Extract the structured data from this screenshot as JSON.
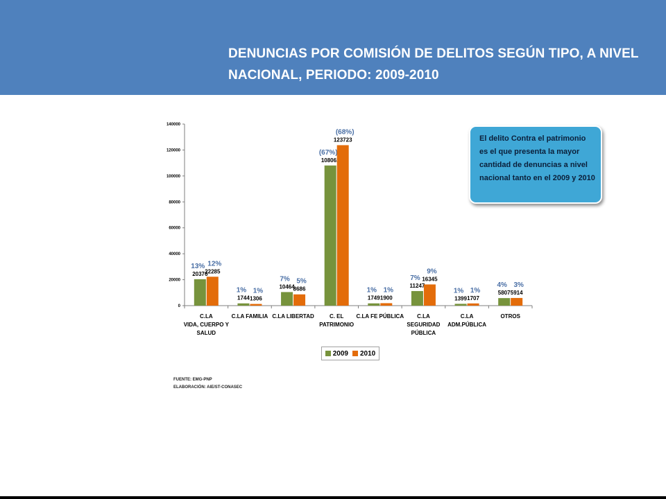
{
  "slide": {
    "title_line1": "DENUNCIAS POR COMISIÓN DE DELITOS SEGÚN TIPO, A NIVEL",
    "title_line2": "NACIONAL, PERIODO: 2009-2010",
    "callout_text": "El delito Contra el patrimonio es el que presenta la mayor cantidad de denuncias a nivel nacional tanto en el  2009 y 2010",
    "source": "FUENTE: EMG-PNP",
    "elaboration": "ELABORACIÓN: AIE/ST-CONASEC",
    "colors": {
      "header": "#4f81bd",
      "callout": "#3fa7d6"
    }
  },
  "chart_data": {
    "type": "bar",
    "title": "",
    "xlabel": "",
    "ylabel": "",
    "ylim": [
      0,
      140000
    ],
    "yticks": [
      "0",
      "20000",
      "40000",
      "60000",
      "80000",
      "100000",
      "120000",
      "140000"
    ],
    "categories": [
      [
        "C.LA",
        "VIDA, CUERPO Y",
        "SALUD"
      ],
      [
        "C.LA FAMILIA"
      ],
      [
        "C.LA LIBERTAD"
      ],
      [
        "C. EL",
        "PATRIMONIO"
      ],
      [
        "C.LA FE PÚBLICA"
      ],
      [
        "C.LA",
        "SEGURIDAD",
        "PÚBLICA"
      ],
      [
        "C.LA",
        "ADM.PÚBLICA"
      ],
      [
        "OTROS"
      ]
    ],
    "series": [
      {
        "name": "2009",
        "color": "#77933c",
        "values": [
          20376,
          1744,
          10464,
          108062,
          1749,
          11247,
          1399,
          5807
        ],
        "percent_labels": [
          "13%",
          "1%",
          "7%",
          "(67%)",
          "1%",
          "7%",
          "1%",
          "4%"
        ]
      },
      {
        "name": "2010",
        "color": "#e36c0a",
        "values": [
          22285,
          1306,
          8686,
          123723,
          1900,
          16345,
          1707,
          5914
        ],
        "percent_labels": [
          "12%",
          "1%",
          "5%",
          "(68%)",
          "1%",
          "9%",
          "1%",
          "3%"
        ]
      }
    ],
    "legend_position": "bottom",
    "grid": false
  }
}
